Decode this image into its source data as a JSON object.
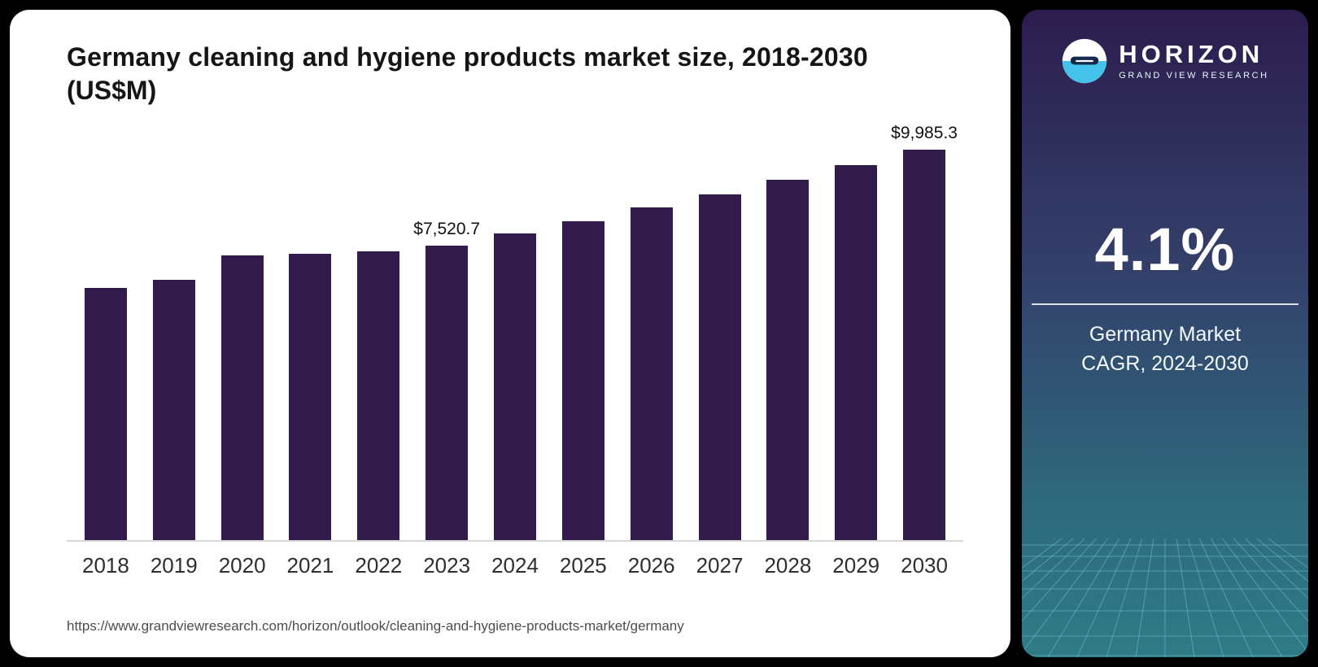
{
  "chart": {
    "title": "Germany cleaning and hygiene products market size, 2018-2030",
    "subtitle": "(US$M)"
  },
  "chart_data": {
    "type": "bar",
    "title": "Germany cleaning and hygiene products market size, 2018-2030 (US$M)",
    "categories": [
      "2018",
      "2019",
      "2020",
      "2021",
      "2022",
      "2023",
      "2024",
      "2025",
      "2026",
      "2027",
      "2028",
      "2029",
      "2030"
    ],
    "values": [
      6450,
      6660,
      7280,
      7320,
      7380,
      7520.7,
      7845,
      8160,
      8500,
      8850,
      9210,
      9590,
      9985.3
    ],
    "value_labels": {
      "2023": "$7,520.7",
      "2030": "$9,985.3"
    },
    "xlabel": "",
    "ylabel": "US$M",
    "ylim": [
      0,
      10500
    ],
    "grid": false,
    "legend": false,
    "bar_color": "#301b4b"
  },
  "sidebar": {
    "brand": "HORIZON",
    "brand_subtitle": "GRAND VIEW RESEARCH",
    "stat_value": "4.1%",
    "stat_label_line1": "Germany Market",
    "stat_label_line2": "CAGR, 2024-2030",
    "gradient_top": "#2c1d4e",
    "gradient_bottom": "#2f7b86",
    "mesh_color": "#79d2e6"
  },
  "footer": {
    "source_url": "https://www.grandviewresearch.com/horizon/outlook/cleaning-and-hygiene-products-market/germany"
  }
}
